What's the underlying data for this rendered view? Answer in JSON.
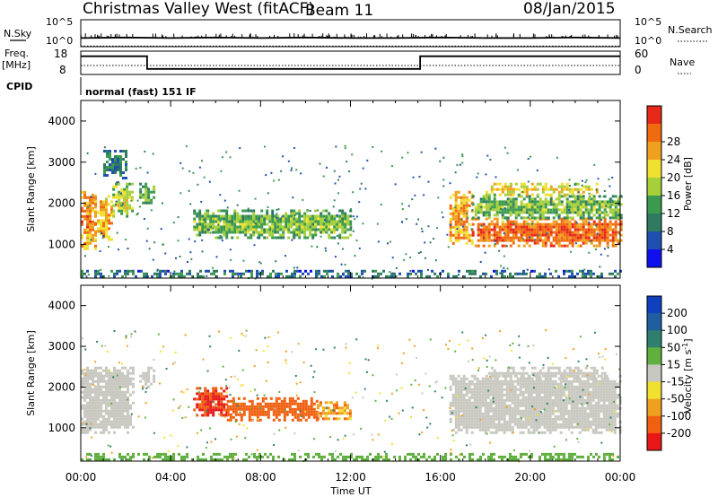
{
  "header": {
    "radar": "Christmas Valley West (fitACF)",
    "beam": "Beam 11",
    "date": "08/Jan/2015"
  },
  "summary": {
    "nsky_label": "N.Sky",
    "nsky_ticks": [
      "10^5",
      "10^0"
    ],
    "nsearch_label": "N.Search",
    "nsearch_ticks": [
      "10^5",
      "10^0"
    ],
    "freq_label_1": "Freq.",
    "freq_label_2": "[MHz]",
    "freq_ticks": [
      "18",
      "8"
    ],
    "nave_label": "Nave",
    "nave_ticks": [
      "60",
      "0"
    ],
    "cpid_label": "CPID",
    "cpid_value": "normal (fast) 151 IF"
  },
  "axes": {
    "xlabel": "Time UT",
    "x_ticks": [
      "00:00",
      "04:00",
      "08:00",
      "12:00",
      "16:00",
      "20:00",
      "00:00"
    ],
    "ylabel": "Slant Range [km]",
    "y_ticks": [
      "1000",
      "2000",
      "3000",
      "4000"
    ],
    "y_range_km": [
      180,
      4500
    ],
    "x_range_hours": [
      0,
      24
    ]
  },
  "power_scale": {
    "label": "Power [dB]",
    "ticks": [
      "4",
      "8",
      "12",
      "16",
      "20",
      "24",
      "28"
    ],
    "colors": [
      "#1010ee",
      "#1f4fb0",
      "#2e7b5f",
      "#3c9a50",
      "#a6cf3a",
      "#f0e030",
      "#f0a020",
      "#f06a10",
      "#e82818"
    ]
  },
  "velocity_scale": {
    "label": "Velocity [m s^-1]",
    "label_main": "Velocity [m s",
    "label_exp": "-1",
    "label_end": "]",
    "ticks": [
      "200",
      "100",
      "50",
      "15",
      "-15",
      "-50",
      "-100",
      "-200"
    ],
    "colors": [
      "#1040c0",
      "#1f5fa0",
      "#2f7f6f",
      "#60b040",
      "#c8c8c0",
      "#f0e030",
      "#f0a020",
      "#f06010",
      "#e81818"
    ]
  },
  "chart_data": [
    {
      "type": "line",
      "title": "N.Sky / N.Search",
      "x": [
        0,
        2,
        4,
        6,
        8,
        10,
        12,
        14,
        16,
        18,
        20,
        22,
        24
      ],
      "series": [
        {
          "name": "N.Sky",
          "values": [
            1.6,
            1.7,
            1.6,
            1.7,
            1.6,
            1.7,
            1.6,
            1.6,
            1.7,
            1.6,
            1.6,
            1.7,
            1.6
          ]
        },
        {
          "name": "N.Search",
          "values": [
            0.1,
            0.1,
            0.1,
            0.1,
            0.1,
            0.1,
            0.1,
            0.1,
            0.1,
            0.1,
            0.1,
            0.1,
            0.1
          ]
        }
      ],
      "ylim": [
        0,
        5
      ]
    },
    {
      "type": "line",
      "title": "Freq. / Nave",
      "x": [
        0,
        2.95,
        2.95,
        15.1,
        15.1,
        24
      ],
      "series": [
        {
          "name": "Freq. [MHz]",
          "values": [
            15.8,
            15.8,
            10.4,
            10.4,
            15.8,
            15.8
          ]
        },
        {
          "name": "Nave",
          "values": [
            20,
            20,
            20,
            20,
            20,
            20
          ]
        }
      ],
      "ylim": [
        8,
        18
      ]
    },
    {
      "type": "heatmap",
      "title": "Power [dB]",
      "x_range": [
        0,
        24
      ],
      "y_range": [
        180,
        4500
      ],
      "regions": [
        {
          "t0": 0.0,
          "t1": 0.6,
          "r0": 900,
          "r1": 2300,
          "value": 26
        },
        {
          "t0": 0.6,
          "t1": 1.4,
          "r0": 1100,
          "r1": 2200,
          "value": 24
        },
        {
          "t0": 1.4,
          "t1": 2.3,
          "r0": 1700,
          "r1": 2500,
          "value": 18
        },
        {
          "t0": 1.0,
          "t1": 2.0,
          "r0": 2600,
          "r1": 3300,
          "value": 8
        },
        {
          "t0": 2.6,
          "t1": 3.3,
          "r0": 2000,
          "r1": 2500,
          "value": 12
        },
        {
          "t0": 5.0,
          "t1": 12.0,
          "r0": 1150,
          "r1": 1850,
          "value": 14
        },
        {
          "t0": 16.4,
          "t1": 17.4,
          "r0": 1000,
          "r1": 2300,
          "value": 24
        },
        {
          "t0": 17.4,
          "t1": 24.0,
          "r0": 950,
          "r1": 1650,
          "value": 28
        },
        {
          "t0": 17.4,
          "t1": 24.0,
          "r0": 1650,
          "r1": 2200,
          "value": 14
        },
        {
          "t0": 18.0,
          "t1": 23.0,
          "r0": 2200,
          "r1": 2500,
          "value": 20
        },
        {
          "t0": 0.0,
          "t1": 24.0,
          "r0": 200,
          "r1": 380,
          "value": 8
        }
      ]
    },
    {
      "type": "heatmap",
      "title": "Velocity [m s^-1]",
      "x_range": [
        0,
        24
      ],
      "y_range": [
        180,
        4500
      ],
      "regions": [
        {
          "t0": 0.0,
          "t1": 2.3,
          "r0": 900,
          "r1": 2500,
          "value": 0
        },
        {
          "t0": 2.6,
          "t1": 3.3,
          "r0": 2000,
          "r1": 2500,
          "value": 0
        },
        {
          "t0": 5.0,
          "t1": 6.5,
          "r0": 1300,
          "r1": 2000,
          "value": -200
        },
        {
          "t0": 6.5,
          "t1": 10.5,
          "r0": 1200,
          "r1": 1750,
          "value": -150
        },
        {
          "t0": 10.5,
          "t1": 12.0,
          "r0": 1250,
          "r1": 1650,
          "value": -80
        },
        {
          "t0": 16.4,
          "t1": 24.0,
          "r0": 900,
          "r1": 2300,
          "value": 0
        },
        {
          "t0": 18.0,
          "t1": 23.5,
          "r0": 2200,
          "r1": 2500,
          "value": 0
        },
        {
          "t0": 0.0,
          "t1": 24.0,
          "r0": 200,
          "r1": 380,
          "value": 30
        }
      ]
    }
  ]
}
